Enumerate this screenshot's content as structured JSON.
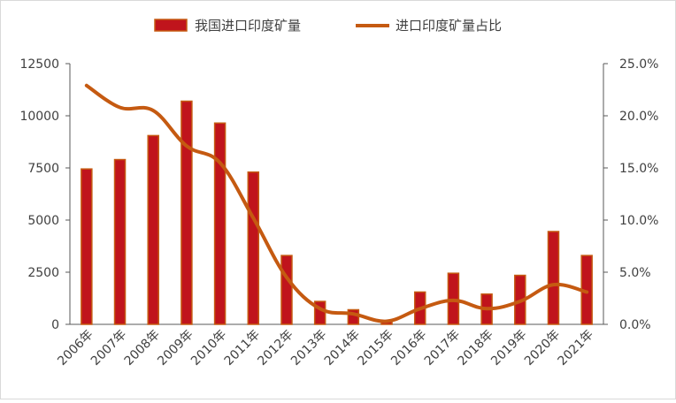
{
  "chart_data": {
    "type": "bar",
    "categories": [
      "2006年",
      "2007年",
      "2008年",
      "2009年",
      "2010年",
      "2011年",
      "2012年",
      "2013年",
      "2014年",
      "2015年",
      "2016年",
      "2017年",
      "2018年",
      "2019年",
      "2020年",
      "2021年"
    ],
    "series": [
      {
        "name": "我国进口印度矿量",
        "type": "bar",
        "axis": "left",
        "color": "#C0141C",
        "border_color": "#C55A11",
        "values": [
          7450,
          7900,
          9050,
          10700,
          9650,
          7300,
          3300,
          1100,
          700,
          150,
          1550,
          2450,
          1450,
          2350,
          4450,
          3300
        ]
      },
      {
        "name": "进口印度矿量占比",
        "type": "line",
        "axis": "right",
        "color": "#C55A11",
        "values": [
          22.9,
          20.8,
          20.5,
          17.1,
          15.5,
          10.2,
          4.5,
          1.5,
          1.0,
          0.3,
          1.5,
          2.3,
          1.5,
          2.2,
          3.8,
          3.1
        ]
      }
    ],
    "y_left": {
      "min": 0,
      "max": 12500,
      "ticks": [
        "0",
        "2500",
        "5000",
        "7500",
        "10000",
        "12500"
      ]
    },
    "y_right": {
      "min": 0,
      "max": 25,
      "ticks": [
        "0.0%",
        "5.0%",
        "10.0%",
        "15.0%",
        "20.0%",
        "25.0%"
      ]
    },
    "legend_position": "top-center",
    "grid": false
  }
}
